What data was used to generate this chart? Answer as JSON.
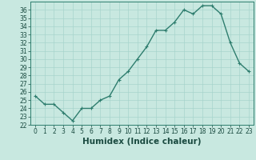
{
  "title": "",
  "xlabel": "Humidex (Indice chaleur)",
  "ylabel": "",
  "x": [
    0,
    1,
    2,
    3,
    4,
    5,
    6,
    7,
    8,
    9,
    10,
    11,
    12,
    13,
    14,
    15,
    16,
    17,
    18,
    19,
    20,
    21,
    22,
    23
  ],
  "y": [
    25.5,
    24.5,
    24.5,
    23.5,
    22.5,
    24.0,
    24.0,
    25.0,
    25.5,
    27.5,
    28.5,
    30.0,
    31.5,
    33.5,
    33.5,
    34.5,
    36.0,
    35.5,
    36.5,
    36.5,
    35.5,
    32.0,
    29.5,
    28.5
  ],
  "line_color": "#2e7d6e",
  "marker": "+",
  "marker_color": "#2e7d6e",
  "bg_color": "#c8e8e0",
  "grid_color": "#a8d4cc",
  "ylim": [
    22,
    37
  ],
  "xlim": [
    -0.5,
    23.5
  ],
  "yticks": [
    22,
    23,
    24,
    25,
    26,
    27,
    28,
    29,
    30,
    31,
    32,
    33,
    34,
    35,
    36
  ],
  "xticks": [
    0,
    1,
    2,
    3,
    4,
    5,
    6,
    7,
    8,
    9,
    10,
    11,
    12,
    13,
    14,
    15,
    16,
    17,
    18,
    19,
    20,
    21,
    22,
    23
  ],
  "tick_label_fontsize": 5.5,
  "xlabel_fontsize": 7.5,
  "linewidth": 1.0,
  "markersize": 3.5,
  "marker_linewidth": 0.8
}
